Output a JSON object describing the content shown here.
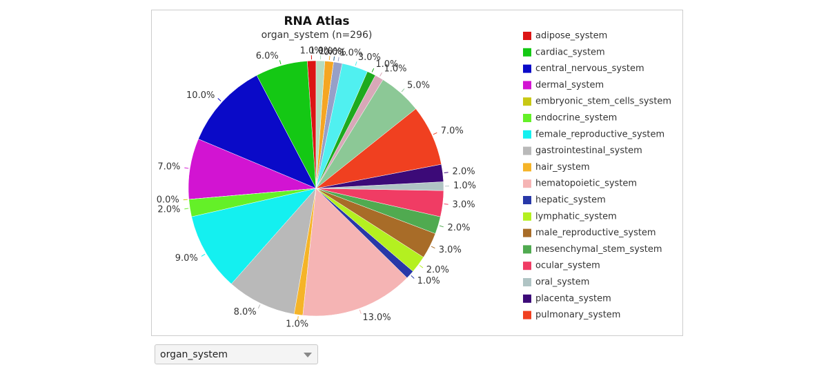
{
  "chart_data": {
    "type": "pie",
    "title": "RNA Atlas",
    "subtitle": "organ_system (n=296)",
    "categories": [
      "adipose_system",
      "cardiac_system",
      "central_nervous_system",
      "dermal_system",
      "embryonic_stem_cells_system",
      "endocrine_system",
      "female_reproductive_system",
      "gastrointestinal_system",
      "hair_system",
      "hematopoietic_system",
      "hepatic_system",
      "lymphatic_system",
      "male_reproductive_system",
      "mesenchymal_stem_system",
      "ocular_system",
      "oral_system",
      "placenta_system",
      "pulmonary_system",
      null,
      null,
      null,
      null,
      null,
      null,
      null,
      null
    ],
    "values": [
      1,
      6,
      10,
      7,
      0,
      2,
      9,
      8,
      1,
      13,
      1,
      2,
      3,
      2,
      3,
      1,
      2,
      7,
      5,
      1,
      1,
      3,
      1,
      0,
      1,
      1
    ],
    "value_labels": [
      "1.0%",
      "6.0%",
      "10.0%",
      "7.0%",
      "0.0%",
      "2.0%",
      "9.0%",
      "8.0%",
      "1.0%",
      "13.0%",
      "1.0%",
      "2.0%",
      "3.0%",
      "2.0%",
      "3.0%",
      "1.0%",
      "2.0%",
      "7.0%",
      "5.0%",
      "1.0%",
      "1.0%",
      "3.0%",
      "1.0%",
      "0.0%",
      "1.0%",
      "1.0%"
    ],
    "colors": [
      "#dc1414",
      "#14c814",
      "#0a0ac8",
      "#d214d2",
      "#c8c814",
      "#64f028",
      "#14f0f0",
      "#b9b9b9",
      "#f5b428",
      "#f5b4b4",
      "#2838a8",
      "#b4f020",
      "#a86c28",
      "#50aa50",
      "#f03c64",
      "#b0c4c4",
      "#3c0a78",
      "#f04020",
      "#8cc896",
      "#d8a8b8",
      "#1eaa1e",
      "#50f0f0",
      "#96a0c8",
      "#1a5f8a",
      "#f5a623",
      "#b4dcc0"
    ]
  },
  "dropdown": {
    "selected": "organ_system"
  }
}
